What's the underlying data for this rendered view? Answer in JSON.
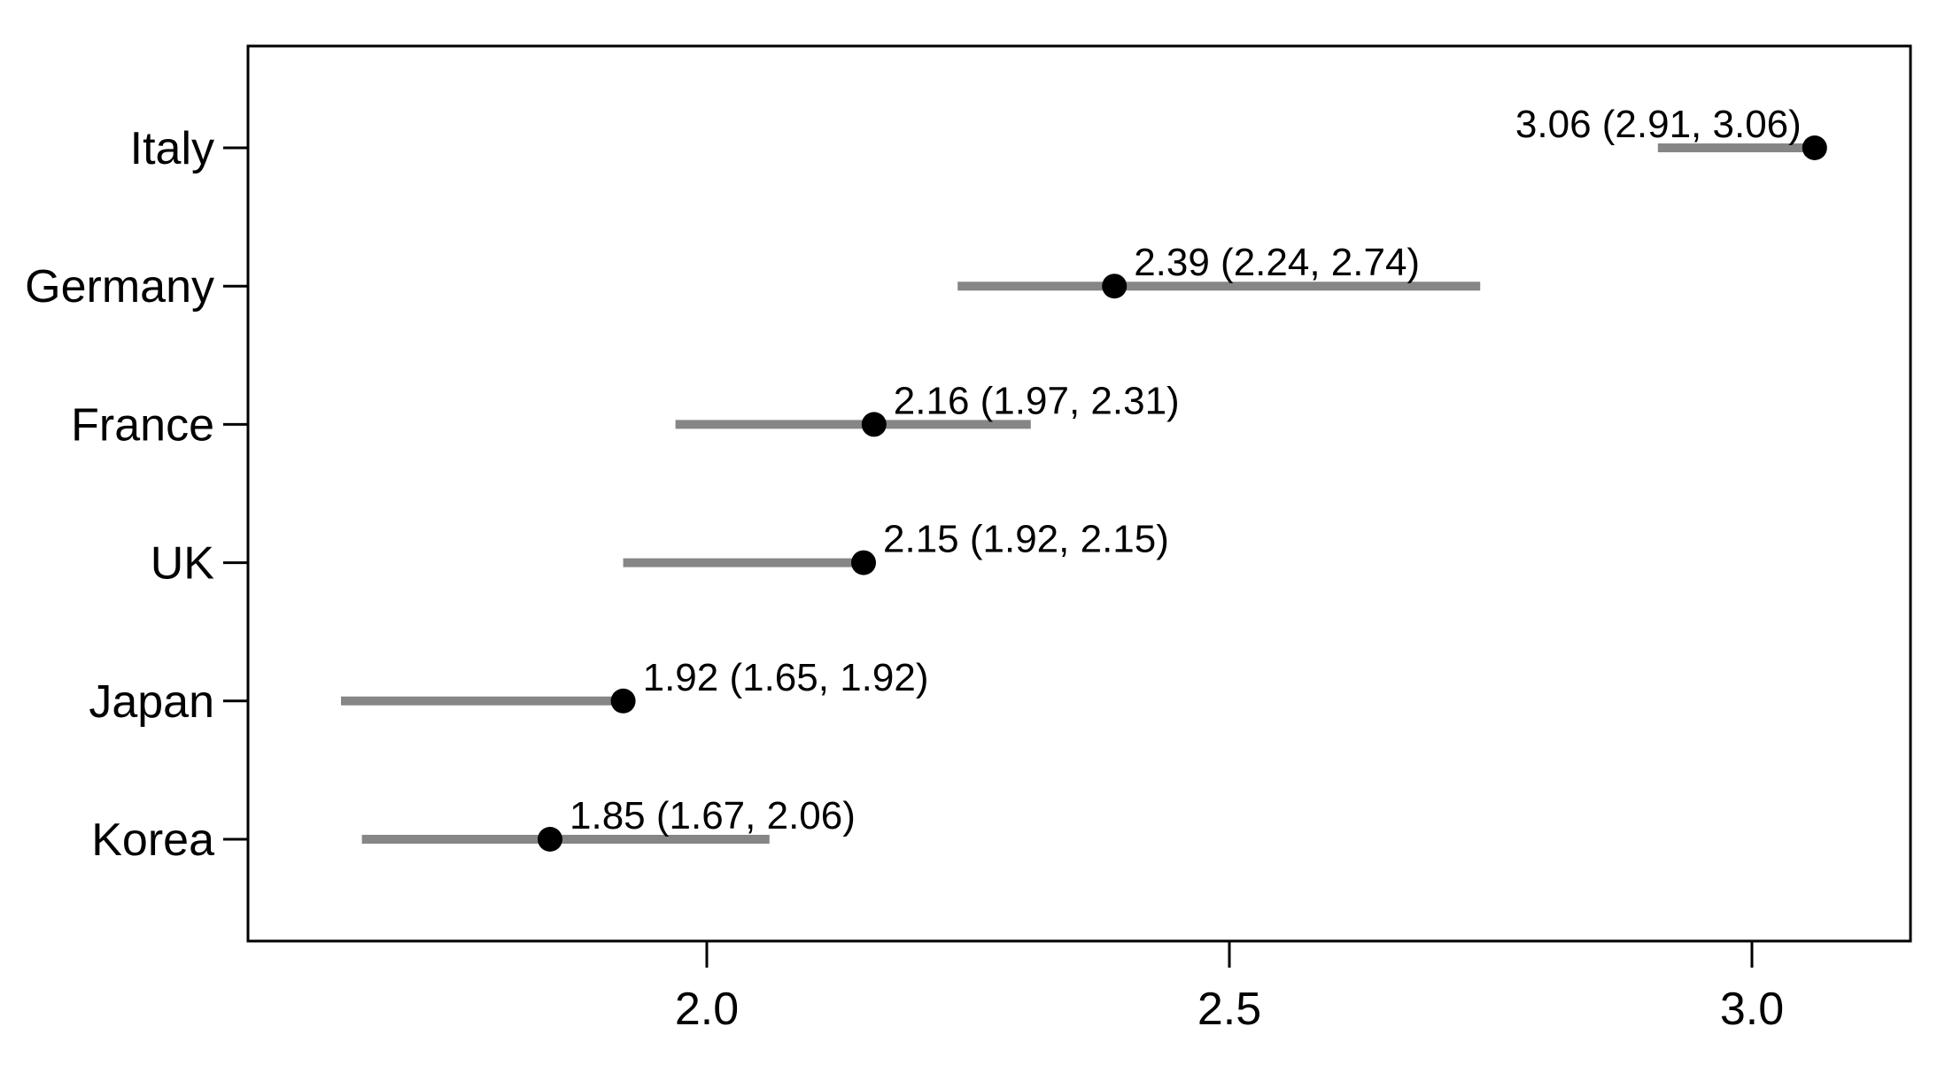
{
  "chart_data": {
    "type": "scatter",
    "subtype": "dot-plot-with-confidence-intervals",
    "title": "",
    "xlabel": "",
    "ylabel": "",
    "categories": [
      "Italy",
      "Germany",
      "France",
      "UK",
      "Japan",
      "Korea"
    ],
    "points": [
      {
        "category": "Italy",
        "estimate": 3.06,
        "ci_low": 2.91,
        "ci_high": 3.06,
        "label": "3.06 (2.91, 3.06)",
        "label_side": "left"
      },
      {
        "category": "Germany",
        "estimate": 2.39,
        "ci_low": 2.24,
        "ci_high": 2.74,
        "label": "2.39 (2.24, 2.74)",
        "label_side": "right"
      },
      {
        "category": "France",
        "estimate": 2.16,
        "ci_low": 1.97,
        "ci_high": 2.31,
        "label": "2.16 (1.97, 2.31)",
        "label_side": "right"
      },
      {
        "category": "UK",
        "estimate": 2.15,
        "ci_low": 1.92,
        "ci_high": 2.15,
        "label": "2.15 (1.92, 2.15)",
        "label_side": "right"
      },
      {
        "category": "Japan",
        "estimate": 1.92,
        "ci_low": 1.65,
        "ci_high": 1.92,
        "label": "1.92 (1.65, 1.92)",
        "label_side": "right"
      },
      {
        "category": "Korea",
        "estimate": 1.85,
        "ci_low": 1.67,
        "ci_high": 2.06,
        "label": "1.85 (1.67, 2.06)",
        "label_side": "right"
      }
    ],
    "x_axis": {
      "ticks": [
        2.0,
        2.5,
        3.0
      ],
      "tick_labels": [
        "2.0",
        "2.5",
        "3.0"
      ],
      "range": [
        1.56,
        3.15
      ]
    },
    "grid": false,
    "legend": "none",
    "colors": {
      "ci_line": "#868686",
      "point": "#000000",
      "text": "#000000",
      "border": "#000000",
      "background": "#ffffff"
    }
  }
}
